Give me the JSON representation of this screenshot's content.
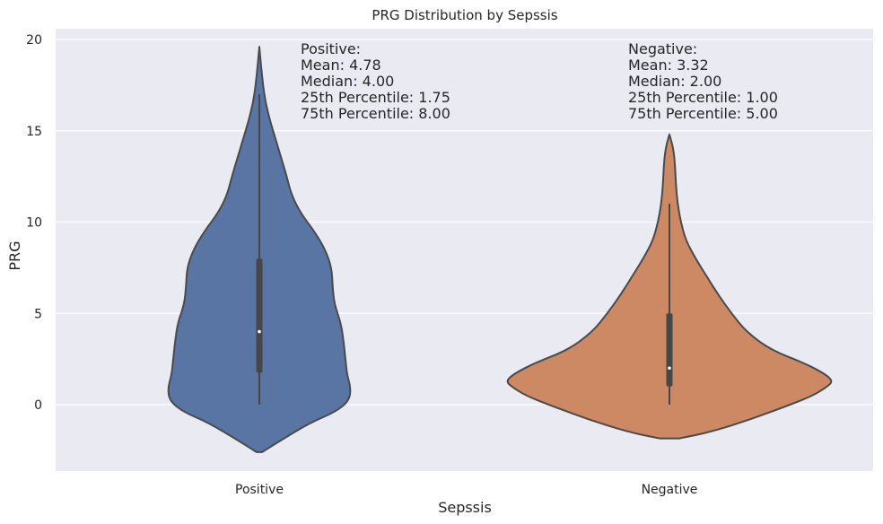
{
  "chart_data": {
    "type": "violin",
    "title": "PRG Distribution by Sepssis",
    "xlabel": "Sepssis",
    "ylabel": "PRG",
    "ylim": [
      -3.6,
      20.6
    ],
    "yticks": [
      0,
      5,
      10,
      15,
      20
    ],
    "grid": true,
    "categories": [
      "Positive",
      "Negative"
    ],
    "series": [
      {
        "category": "Positive",
        "color": "#5975a4",
        "min": 0,
        "max": 17,
        "whisker_top": 17,
        "q1": 1.75,
        "median": 4.0,
        "q3": 8.0,
        "kde_extent": [
          -2.6,
          19.6
        ],
        "density_profile": [
          [
            -2.6,
            0.03
          ],
          [
            -2.0,
            0.22
          ],
          [
            -1.0,
            0.55
          ],
          [
            -0.4,
            0.83
          ],
          [
            0.2,
            0.98
          ],
          [
            0.9,
            1.0
          ],
          [
            1.6,
            0.96
          ],
          [
            2.5,
            0.94
          ],
          [
            3.5,
            0.92
          ],
          [
            4.5,
            0.89
          ],
          [
            5.5,
            0.82
          ],
          [
            6.5,
            0.8
          ],
          [
            7.5,
            0.79
          ],
          [
            8.5,
            0.72
          ],
          [
            9.5,
            0.6
          ],
          [
            10.5,
            0.45
          ],
          [
            11.5,
            0.35
          ],
          [
            12.5,
            0.3
          ],
          [
            13.5,
            0.24
          ],
          [
            14.5,
            0.18
          ],
          [
            15.5,
            0.12
          ],
          [
            16.5,
            0.07
          ],
          [
            17.5,
            0.04
          ],
          [
            18.5,
            0.02
          ],
          [
            19.6,
            0.0
          ]
        ],
        "annotation": [
          "Positive:",
          "Mean: 4.78",
          "Median: 4.00",
          "25th Percentile: 1.75",
          "75th Percentile: 8.00"
        ]
      },
      {
        "category": "Negative",
        "color": "#cc8963",
        "min": 0,
        "max": 11,
        "whisker_top": 11,
        "q1": 1.0,
        "median": 2.0,
        "q3": 5.0,
        "kde_extent": [
          -1.85,
          14.8
        ],
        "density_profile": [
          [
            -1.85,
            0.06
          ],
          [
            -1.5,
            0.25
          ],
          [
            -0.8,
            0.5
          ],
          [
            0,
            0.74
          ],
          [
            0.5,
            0.88
          ],
          [
            1.0,
            0.97
          ],
          [
            1.3,
            1.0
          ],
          [
            1.7,
            0.95
          ],
          [
            2.3,
            0.82
          ],
          [
            3.0,
            0.62
          ],
          [
            4.0,
            0.47
          ],
          [
            5.0,
            0.38
          ],
          [
            6.0,
            0.3
          ],
          [
            7.0,
            0.23
          ],
          [
            8.0,
            0.16
          ],
          [
            9.0,
            0.1
          ],
          [
            10.0,
            0.07
          ],
          [
            11.0,
            0.05
          ],
          [
            12.0,
            0.04
          ],
          [
            13.0,
            0.035
          ],
          [
            14.0,
            0.025
          ],
          [
            14.8,
            0.0
          ]
        ],
        "annotation": [
          "Negative:",
          "Mean: 3.32",
          "Median: 2.00",
          "25th Percentile: 1.00",
          "75th Percentile: 5.00"
        ]
      }
    ]
  }
}
